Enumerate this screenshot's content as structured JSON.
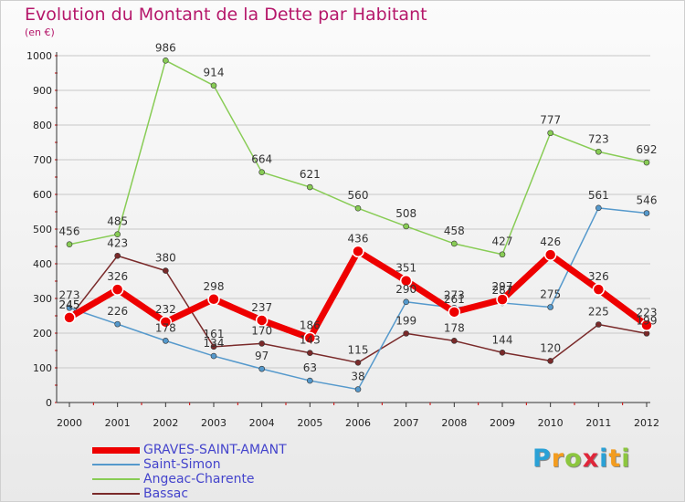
{
  "header": {
    "title": "Evolution du Montant de la Dette par Habitant",
    "subtitle": "(en €)"
  },
  "colors": {
    "title": "#b5176a",
    "axis": "#222222",
    "grid": "#c8c8c8"
  },
  "logo": {
    "letters": [
      "P",
      "r",
      "o",
      "x",
      "i",
      "t",
      "i"
    ],
    "colors": [
      "#2aa1d6",
      "#f39c1f",
      "#8cc63f",
      "#e0263a",
      "#2aa1d6",
      "#f39c1f",
      "#8cc63f"
    ]
  },
  "chart_data": {
    "type": "line",
    "title": "Evolution du Montant de la Dette par Habitant",
    "subtitle": "(en €)",
    "x": [
      "2000",
      "2001",
      "2002",
      "2003",
      "2004",
      "2005",
      "2006",
      "2007",
      "2008",
      "2009",
      "2010",
      "2011",
      "2012"
    ],
    "ylim": [
      0,
      1000
    ],
    "yticks": [
      0,
      100,
      200,
      300,
      400,
      500,
      600,
      700,
      800,
      900,
      1000
    ],
    "grid": "horizontal",
    "legend_position": "bottom-left",
    "series": [
      {
        "name": "GRAVES-SAINT-AMANT",
        "color": "#ee0000",
        "values": [
          245,
          326,
          232,
          298,
          237,
          186,
          436,
          351,
          261,
          297,
          426,
          326,
          223
        ],
        "labels": [
          "245",
          "326",
          "232",
          "298",
          "237",
          "186",
          "436",
          "351",
          "261",
          "297",
          "426",
          "326",
          "223"
        ]
      },
      {
        "name": "Saint-Simon",
        "color": "#5599cc",
        "values": [
          273,
          226,
          178,
          134,
          97,
          63,
          38,
          290,
          273,
          287,
          275,
          561,
          546
        ],
        "labels": [
          "273",
          "226",
          "178",
          "134",
          "97",
          "63",
          "38",
          "290",
          "273",
          "287",
          "275",
          "561",
          "546"
        ]
      },
      {
        "name": "Angeac-Charente",
        "color": "#88cc55",
        "values": [
          456,
          485,
          986,
          914,
          664,
          621,
          560,
          508,
          458,
          427,
          777,
          723,
          692
        ],
        "labels": [
          "456",
          "485",
          "986",
          "914",
          "664",
          "621",
          "560",
          "508",
          "458",
          "427",
          "777",
          "723",
          "692"
        ]
      },
      {
        "name": "Bassac",
        "color": "#7a2a2a",
        "values": [
          245,
          423,
          380,
          161,
          170,
          143,
          115,
          199,
          178,
          144,
          120,
          225,
          199
        ],
        "labels": [
          "245",
          "423",
          "380",
          "161",
          "170",
          "143",
          "115",
          "199",
          "178",
          "144",
          "120",
          "225",
          "199"
        ]
      }
    ]
  }
}
